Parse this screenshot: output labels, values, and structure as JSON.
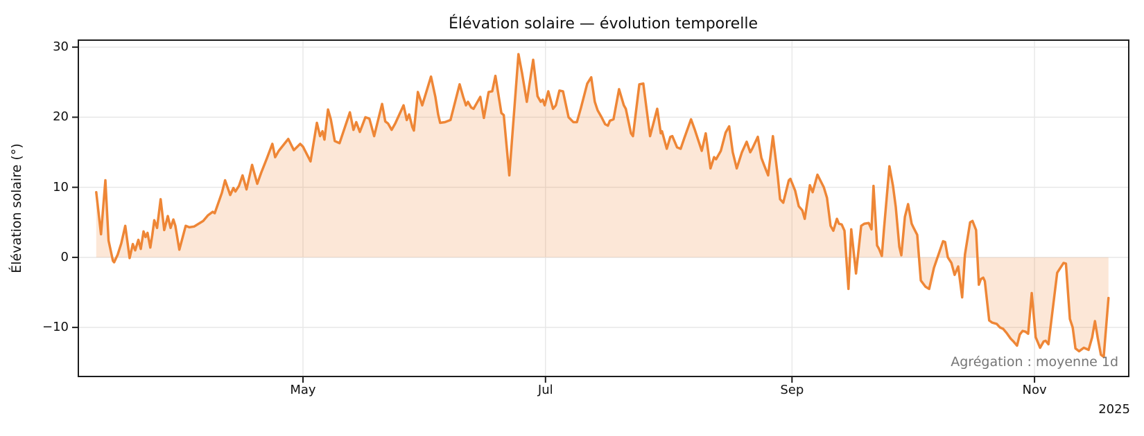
{
  "chart_data": {
    "type": "area",
    "title": "Élévation solaire — évolution temporelle",
    "ylabel": "Élévation solaire (°)",
    "annotation": "Agrégation : moyenne 1d",
    "x_axis_offset_label": "2025",
    "x_start_date": "2025-03-10",
    "x_tick_labels": [
      "May",
      "Jul",
      "Sep",
      "Nov"
    ],
    "x_tick_days": [
      52,
      113,
      175,
      236
    ],
    "y_ticks": [
      -10,
      0,
      10,
      20,
      30
    ],
    "y_tick_labels": [
      "−10",
      "0",
      "10",
      "20",
      "30"
    ],
    "xlim_days": [
      -4.5,
      259.7
    ],
    "ylim": [
      -17,
      31
    ],
    "grid": true,
    "legend": false,
    "fill_to": 0,
    "line_width": 3.5,
    "colors": {
      "line": "#ee8636",
      "fill": "rgba(238,134,54,0.2)",
      "grid": "#e7e7e7",
      "spine": "#1c1c1c",
      "text": "#111111",
      "annotation": "#757575"
    },
    "points": [
      [
        0,
        9.3
      ],
      [
        1.2,
        3.3
      ],
      [
        2.3,
        11
      ],
      [
        3.1,
        2.4
      ],
      [
        4.2,
        -0.5
      ],
      [
        4.5,
        -0.7
      ],
      [
        5.4,
        0.4
      ],
      [
        6.3,
        2
      ],
      [
        7.3,
        4.5
      ],
      [
        8.4,
        -0.1
      ],
      [
        9.2,
        1.9
      ],
      [
        9.8,
        1
      ],
      [
        10.6,
        2.5
      ],
      [
        11.2,
        1.2
      ],
      [
        11.9,
        3.7
      ],
      [
        12.4,
        2.9
      ],
      [
        12.9,
        3.5
      ],
      [
        13.6,
        1.4
      ],
      [
        14.1,
        3.2
      ],
      [
        14.6,
        5.3
      ],
      [
        15.3,
        4.2
      ],
      [
        16.2,
        8.3
      ],
      [
        17.1,
        3.9
      ],
      [
        18,
        5.9
      ],
      [
        18.7,
        4.2
      ],
      [
        19.4,
        5.4
      ],
      [
        19.9,
        4.5
      ],
      [
        20.9,
        1.1
      ],
      [
        21.8,
        3
      ],
      [
        22.5,
        4.5
      ],
      [
        23.4,
        4.3
      ],
      [
        24.6,
        4.4
      ],
      [
        26.9,
        5.2
      ],
      [
        28.1,
        6
      ],
      [
        29.3,
        6.5
      ],
      [
        29.8,
        6.3
      ],
      [
        31.6,
        9.2
      ],
      [
        32.4,
        11
      ],
      [
        33.7,
        8.9
      ],
      [
        34.5,
        9.9
      ],
      [
        35,
        9.4
      ],
      [
        35.9,
        10.2
      ],
      [
        36.8,
        11.7
      ],
      [
        37.8,
        9.7
      ],
      [
        39.2,
        13.2
      ],
      [
        40.5,
        10.5
      ],
      [
        41.5,
        12.1
      ],
      [
        42.9,
        14.1
      ],
      [
        44.3,
        16.2
      ],
      [
        45,
        14.3
      ],
      [
        45.9,
        15.2
      ],
      [
        48.3,
        16.9
      ],
      [
        49.7,
        15.3
      ],
      [
        51.3,
        16.2
      ],
      [
        52,
        15.8
      ],
      [
        53.9,
        13.7
      ],
      [
        55.5,
        19.2
      ],
      [
        56.3,
        17.3
      ],
      [
        56.9,
        18
      ],
      [
        57.4,
        16.8
      ],
      [
        58.3,
        21.1
      ],
      [
        59,
        19.7
      ],
      [
        60,
        16.6
      ],
      [
        61.2,
        16.3
      ],
      [
        63.8,
        20.7
      ],
      [
        64.7,
        18.2
      ],
      [
        65.4,
        19.3
      ],
      [
        66.3,
        17.9
      ],
      [
        67.7,
        20
      ],
      [
        68.7,
        19.8
      ],
      [
        69.9,
        17.3
      ],
      [
        71.9,
        21.9
      ],
      [
        72.7,
        19.4
      ],
      [
        73.4,
        19.1
      ],
      [
        74.3,
        18.2
      ],
      [
        75.2,
        19.1
      ],
      [
        77.3,
        21.7
      ],
      [
        78.1,
        19.6
      ],
      [
        78.7,
        20.4
      ],
      [
        79.5,
        18.6
      ],
      [
        79.9,
        18.1
      ],
      [
        80.9,
        23.6
      ],
      [
        82,
        21.7
      ],
      [
        84.2,
        25.8
      ],
      [
        85.3,
        22.9
      ],
      [
        86,
        20.4
      ],
      [
        86.5,
        19.2
      ],
      [
        87.7,
        19.3
      ],
      [
        89.1,
        19.6
      ],
      [
        91.4,
        24.7
      ],
      [
        92.3,
        22.9
      ],
      [
        93,
        21.7
      ],
      [
        93.5,
        22.2
      ],
      [
        94.3,
        21.4
      ],
      [
        94.9,
        21.2
      ],
      [
        96.1,
        22.4
      ],
      [
        96.6,
        22.9
      ],
      [
        97.5,
        19.9
      ],
      [
        98.7,
        23.6
      ],
      [
        99.6,
        23.7
      ],
      [
        100.4,
        25.9
      ],
      [
        101.9,
        20.6
      ],
      [
        102.5,
        20.3
      ],
      [
        103.9,
        11.7
      ],
      [
        106.2,
        29
      ],
      [
        107.1,
        26.3
      ],
      [
        108.3,
        22.2
      ],
      [
        109.9,
        28.2
      ],
      [
        111,
        23
      ],
      [
        111.8,
        22.2
      ],
      [
        112.3,
        22.5
      ],
      [
        112.8,
        21.7
      ],
      [
        113.7,
        23.7
      ],
      [
        114.9,
        21.2
      ],
      [
        115.6,
        21.7
      ],
      [
        116.5,
        23.8
      ],
      [
        117.4,
        23.7
      ],
      [
        118.8,
        20
      ],
      [
        120,
        19.3
      ],
      [
        120.9,
        19.3
      ],
      [
        121.9,
        21.3
      ],
      [
        123.5,
        24.8
      ],
      [
        124.5,
        25.7
      ],
      [
        125.4,
        22.2
      ],
      [
        126.1,
        21
      ],
      [
        127.1,
        20
      ],
      [
        128,
        19
      ],
      [
        128.7,
        18.8
      ],
      [
        129.2,
        19.5
      ],
      [
        130.1,
        19.7
      ],
      [
        131.5,
        24
      ],
      [
        132.7,
        21.7
      ],
      [
        133.2,
        21.2
      ],
      [
        134.5,
        17.7
      ],
      [
        135,
        17.3
      ],
      [
        136.6,
        24.7
      ],
      [
        137.6,
        24.8
      ],
      [
        139.3,
        17.3
      ],
      [
        141.1,
        21.2
      ],
      [
        142,
        17.7
      ],
      [
        142.3,
        18
      ],
      [
        143.5,
        15.5
      ],
      [
        144.4,
        17.2
      ],
      [
        144.9,
        17.3
      ],
      [
        146.1,
        15.7
      ],
      [
        147,
        15.5
      ],
      [
        147.9,
        17
      ],
      [
        149.6,
        19.7
      ],
      [
        150.5,
        18.3
      ],
      [
        152.3,
        15.2
      ],
      [
        153.3,
        17.7
      ],
      [
        154.5,
        12.7
      ],
      [
        155.4,
        14.3
      ],
      [
        155.9,
        14
      ],
      [
        157.1,
        15.2
      ],
      [
        158.3,
        17.8
      ],
      [
        159.2,
        18.7
      ],
      [
        160.1,
        15
      ],
      [
        161.1,
        12.7
      ],
      [
        162.4,
        15
      ],
      [
        163.6,
        16.5
      ],
      [
        164.5,
        15
      ],
      [
        165,
        15.5
      ],
      [
        166.4,
        17.2
      ],
      [
        167.3,
        14.2
      ],
      [
        168.1,
        13
      ],
      [
        169,
        11.7
      ],
      [
        170.2,
        17.3
      ],
      [
        171.4,
        11.7
      ],
      [
        172,
        8.3
      ],
      [
        172.8,
        7.8
      ],
      [
        174.2,
        11
      ],
      [
        174.6,
        11.2
      ],
      [
        175.8,
        9.5
      ],
      [
        176.7,
        7.3
      ],
      [
        177.6,
        6.7
      ],
      [
        178.2,
        5.5
      ],
      [
        179.5,
        10.3
      ],
      [
        180.2,
        9.3
      ],
      [
        181.4,
        11.8
      ],
      [
        183,
        10
      ],
      [
        183.8,
        8.5
      ],
      [
        184.7,
        4.5
      ],
      [
        185.4,
        3.8
      ],
      [
        186.3,
        5.5
      ],
      [
        186.8,
        4.8
      ],
      [
        187.5,
        4.7
      ],
      [
        188.2,
        3.8
      ],
      [
        189.2,
        -4.5
      ],
      [
        189.9,
        4
      ],
      [
        191.1,
        -2.3
      ],
      [
        192.4,
        4.5
      ],
      [
        193.2,
        4.8
      ],
      [
        194.3,
        4.9
      ],
      [
        195,
        4
      ],
      [
        195.5,
        10.2
      ],
      [
        196.4,
        1.7
      ],
      [
        196.9,
        1.2
      ],
      [
        197.6,
        0.2
      ],
      [
        198.1,
        3.8
      ],
      [
        199.5,
        13
      ],
      [
        200.4,
        10.2
      ],
      [
        201.1,
        7.2
      ],
      [
        202,
        1.5
      ],
      [
        202.5,
        0.3
      ],
      [
        203.4,
        5.8
      ],
      [
        204.2,
        7.6
      ],
      [
        205.1,
        4.8
      ],
      [
        205.6,
        4.2
      ],
      [
        206.5,
        3.2
      ],
      [
        207.4,
        -3.3
      ],
      [
        208.6,
        -4.2
      ],
      [
        209.5,
        -4.5
      ],
      [
        210.7,
        -1.5
      ],
      [
        211.6,
        0
      ],
      [
        213,
        2.3
      ],
      [
        213.5,
        2.2
      ],
      [
        214.2,
        0
      ],
      [
        215.1,
        -0.8
      ],
      [
        215.9,
        -2.5
      ],
      [
        216.8,
        -1.3
      ],
      [
        217.8,
        -5.7
      ],
      [
        218.5,
        0.4
      ],
      [
        219.8,
        5
      ],
      [
        220.4,
        5.2
      ],
      [
        221.3,
        3.9
      ],
      [
        222,
        -3.9
      ],
      [
        222.5,
        -3.1
      ],
      [
        223.1,
        -2.9
      ],
      [
        223.5,
        -3.4
      ],
      [
        224.6,
        -9
      ],
      [
        225.3,
        -9.3
      ],
      [
        226.5,
        -9.5
      ],
      [
        227.3,
        -10
      ],
      [
        228.1,
        -10.2
      ],
      [
        229,
        -10.8
      ],
      [
        230,
        -11.6
      ],
      [
        230.7,
        -12
      ],
      [
        231.6,
        -12.6
      ],
      [
        232.3,
        -11
      ],
      [
        233,
        -10.5
      ],
      [
        233.7,
        -10.6
      ],
      [
        234.4,
        -10.9
      ],
      [
        235.3,
        -5.1
      ],
      [
        236.3,
        -11.4
      ],
      [
        237.4,
        -12.9
      ],
      [
        238.3,
        -12
      ],
      [
        238.8,
        -11.9
      ],
      [
        239.5,
        -12.4
      ],
      [
        241.7,
        -2.2
      ],
      [
        243.3,
        -0.8
      ],
      [
        243.9,
        -0.9
      ],
      [
        244.9,
        -8.8
      ],
      [
        245.6,
        -10
      ],
      [
        246.3,
        -13
      ],
      [
        247.2,
        -13.4
      ],
      [
        248.4,
        -12.9
      ],
      [
        249.6,
        -13.2
      ],
      [
        250.5,
        -11.4
      ],
      [
        251.2,
        -9.1
      ],
      [
        251.9,
        -11.5
      ],
      [
        252.7,
        -13.9
      ],
      [
        253.4,
        -14.2
      ],
      [
        254.6,
        -5.8
      ]
    ]
  }
}
